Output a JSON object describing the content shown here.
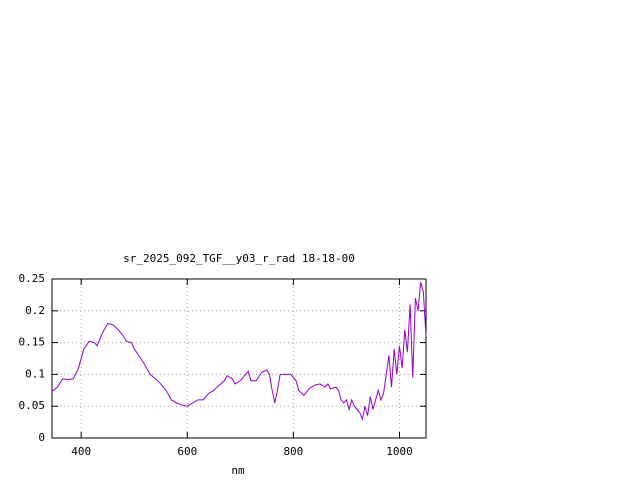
{
  "chart_data": {
    "type": "line",
    "title": "sr_2025_092_TGF__y03_r_rad 18-18-00",
    "x_label": "nm",
    "x": [
      345,
      355,
      365,
      375,
      385,
      395,
      405,
      415,
      425,
      430,
      440,
      450,
      460,
      470,
      480,
      485,
      495,
      500,
      510,
      520,
      530,
      540,
      550,
      560,
      570,
      580,
      590,
      600,
      610,
      620,
      630,
      640,
      650,
      660,
      670,
      675,
      685,
      690,
      700,
      710,
      715,
      720,
      730,
      740,
      750,
      755,
      760,
      765,
      770,
      775,
      785,
      795,
      805,
      810,
      820,
      830,
      840,
      850,
      860,
      865,
      870,
      880,
      885,
      890,
      895,
      900,
      905,
      910,
      915,
      920,
      925,
      930,
      935,
      940,
      945,
      950,
      955,
      960,
      965,
      970,
      975,
      980,
      985,
      990,
      995,
      1000,
      1005,
      1010,
      1015,
      1020,
      1025,
      1030,
      1035,
      1040,
      1045,
      1050
    ],
    "series": [
      {
        "color": "#9400d3",
        "values": [
          0.073,
          0.08,
          0.093,
          0.092,
          0.093,
          0.11,
          0.14,
          0.152,
          0.15,
          0.145,
          0.165,
          0.18,
          0.178,
          0.17,
          0.16,
          0.152,
          0.15,
          0.14,
          0.128,
          0.115,
          0.1,
          0.093,
          0.085,
          0.075,
          0.06,
          0.055,
          0.052,
          0.05,
          0.055,
          0.06,
          0.06,
          0.07,
          0.075,
          0.083,
          0.09,
          0.098,
          0.093,
          0.085,
          0.09,
          0.1,
          0.105,
          0.09,
          0.09,
          0.103,
          0.107,
          0.1,
          0.075,
          0.055,
          0.075,
          0.1,
          0.1,
          0.1,
          0.09,
          0.075,
          0.067,
          0.078,
          0.083,
          0.085,
          0.08,
          0.085,
          0.077,
          0.08,
          0.075,
          0.06,
          0.055,
          0.06,
          0.045,
          0.06,
          0.05,
          0.045,
          0.04,
          0.03,
          0.05,
          0.035,
          0.065,
          0.045,
          0.06,
          0.075,
          0.06,
          0.07,
          0.1,
          0.13,
          0.08,
          0.14,
          0.1,
          0.145,
          0.11,
          0.17,
          0.135,
          0.21,
          0.095,
          0.22,
          0.2,
          0.245,
          0.23,
          0.16
        ]
      }
    ],
    "xlim": [
      345,
      1050
    ],
    "ylim": [
      0,
      0.25
    ],
    "xticks": [
      400,
      600,
      800,
      1000
    ],
    "yticks": [
      0,
      0.05,
      0.1,
      0.15,
      0.2,
      0.25
    ],
    "grid": true
  }
}
